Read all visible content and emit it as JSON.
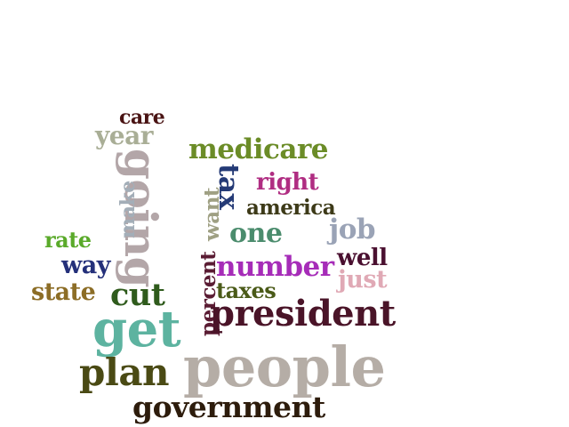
{
  "words": {
    "care": {
      "text": "care",
      "color": "#4a1414"
    },
    "year": {
      "text": "year",
      "color": "#a9ae96"
    },
    "medicare": {
      "text": "medicare",
      "color": "#6b8c27"
    },
    "going": {
      "text": "going",
      "color": "#b3a6a8"
    },
    "make": {
      "text": "make",
      "color": "#a3aeb8"
    },
    "want": {
      "text": "want",
      "color": "#9fa083"
    },
    "tax": {
      "text": "tax",
      "color": "#243a76"
    },
    "right": {
      "text": "right",
      "color": "#b02d82"
    },
    "america": {
      "text": "america",
      "color": "#3d3a18"
    },
    "one": {
      "text": "one",
      "color": "#4b8c6d"
    },
    "job": {
      "text": "job",
      "color": "#9aa3b6"
    },
    "rate": {
      "text": "rate",
      "color": "#5aaa2a"
    },
    "well": {
      "text": "well",
      "color": "#4a1030"
    },
    "way": {
      "text": "way",
      "color": "#24307a"
    },
    "number": {
      "text": "number",
      "color": "#a62cb8"
    },
    "just": {
      "text": "just",
      "color": "#e0a9b5"
    },
    "state": {
      "text": "state",
      "color": "#8c6d26"
    },
    "cut": {
      "text": "cut",
      "color": "#2f5b1c"
    },
    "taxes": {
      "text": "taxes",
      "color": "#4a5a18"
    },
    "percent": {
      "text": "percent",
      "color": "#5a1c33"
    },
    "president": {
      "text": "president",
      "color": "#4a1428"
    },
    "get": {
      "text": "get",
      "color": "#5db3a0"
    },
    "people": {
      "text": "people",
      "color": "#b5ada6"
    },
    "plan": {
      "text": "plan",
      "color": "#4a4a14"
    },
    "government": {
      "text": "government",
      "color": "#2d1c0c"
    }
  }
}
